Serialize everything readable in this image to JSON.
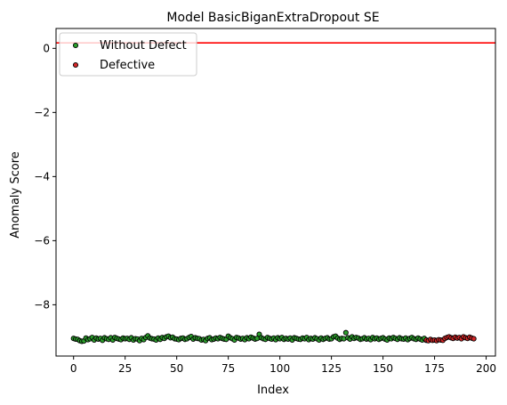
{
  "chart_data": {
    "type": "scatter",
    "title": "Model BasicBiganExtraDropout SE",
    "xlabel": "Index",
    "ylabel": "Anomaly Score",
    "xlim": [
      -8.5,
      204.5
    ],
    "ylim": [
      -9.6,
      0.62
    ],
    "xticks": [
      0,
      25,
      50,
      75,
      100,
      125,
      150,
      175,
      200
    ],
    "yticks": [
      0,
      -2,
      -4,
      -6,
      -8
    ],
    "grid": false,
    "legend_position": "top-left",
    "threshold": {
      "y": 0.17,
      "color": "#ff0000"
    },
    "series": [
      {
        "name": "Without Defect",
        "color": "#2ca02c",
        "x_start": 0,
        "values": [
          -9.05,
          -9.07,
          -9.08,
          -9.12,
          -9.14,
          -9.13,
          -9.04,
          -9.09,
          -9.06,
          -9.02,
          -9.1,
          -9.04,
          -9.07,
          -9.05,
          -9.11,
          -9.03,
          -9.06,
          -9.08,
          -9.03,
          -9.1,
          -9.02,
          -9.05,
          -9.07,
          -9.09,
          -9.04,
          -9.06,
          -9.05,
          -9.08,
          -9.03,
          -9.1,
          -9.06,
          -9.07,
          -9.12,
          -9.05,
          -9.09,
          -9.02,
          -8.97,
          -9.04,
          -9.06,
          -9.07,
          -9.1,
          -9.04,
          -9.08,
          -9.02,
          -9.05,
          -9.0,
          -8.98,
          -9.03,
          -9.01,
          -9.06,
          -9.07,
          -9.09,
          -9.05,
          -9.04,
          -9.08,
          -9.06,
          -9.02,
          -8.99,
          -9.07,
          -9.03,
          -9.05,
          -9.06,
          -9.1,
          -9.08,
          -9.12,
          -9.05,
          -9.03,
          -9.09,
          -9.07,
          -9.04,
          -9.06,
          -9.02,
          -9.05,
          -9.07,
          -9.08,
          -8.98,
          -9.03,
          -9.06,
          -9.1,
          -9.02,
          -9.04,
          -9.07,
          -9.05,
          -9.09,
          -9.03,
          -9.06,
          -9.01,
          -9.04,
          -9.07,
          -9.05,
          -8.92,
          -9.03,
          -9.06,
          -9.08,
          -9.02,
          -9.05,
          -9.07,
          -9.04,
          -9.09,
          -9.03,
          -9.06,
          -9.02,
          -9.08,
          -9.05,
          -9.07,
          -9.04,
          -9.1,
          -9.03,
          -9.05,
          -9.07,
          -9.08,
          -9.04,
          -9.06,
          -9.02,
          -9.09,
          -9.05,
          -9.07,
          -9.03,
          -9.06,
          -9.1,
          -9.04,
          -9.08,
          -9.05,
          -9.03,
          -9.07,
          -9.06,
          -9.0,
          -8.98,
          -9.04,
          -9.08,
          -9.05,
          -9.06,
          -8.87,
          -9.03,
          -9.07,
          -9.0,
          -9.05,
          -9.02,
          -9.04,
          -9.08,
          -9.06,
          -9.03,
          -9.07,
          -9.05,
          -9.09,
          -9.02,
          -9.06,
          -9.04,
          -9.08,
          -9.05,
          -9.03,
          -9.07,
          -9.1,
          -9.04,
          -9.06,
          -9.02,
          -9.05,
          -9.08,
          -9.03,
          -9.06,
          -9.07,
          -9.04,
          -9.09,
          -9.05,
          -9.02,
          -9.06,
          -9.08,
          -9.04,
          -9.07,
          -9.1,
          -9.05,
          -9.11
        ]
      },
      {
        "name": "Defective",
        "color": "#d62728",
        "x_start": 171,
        "values": [
          -9.1,
          -9.12,
          -9.08,
          -9.11,
          -9.1,
          -9.12,
          -9.09,
          -9.1,
          -9.11,
          -9.05,
          -9.02,
          -9.0,
          -9.03,
          -9.05,
          -9.01,
          -9.04,
          -9.02,
          -9.06,
          -9.0,
          -9.03,
          -9.05,
          -9.01,
          -9.04,
          -9.06
        ]
      }
    ]
  }
}
